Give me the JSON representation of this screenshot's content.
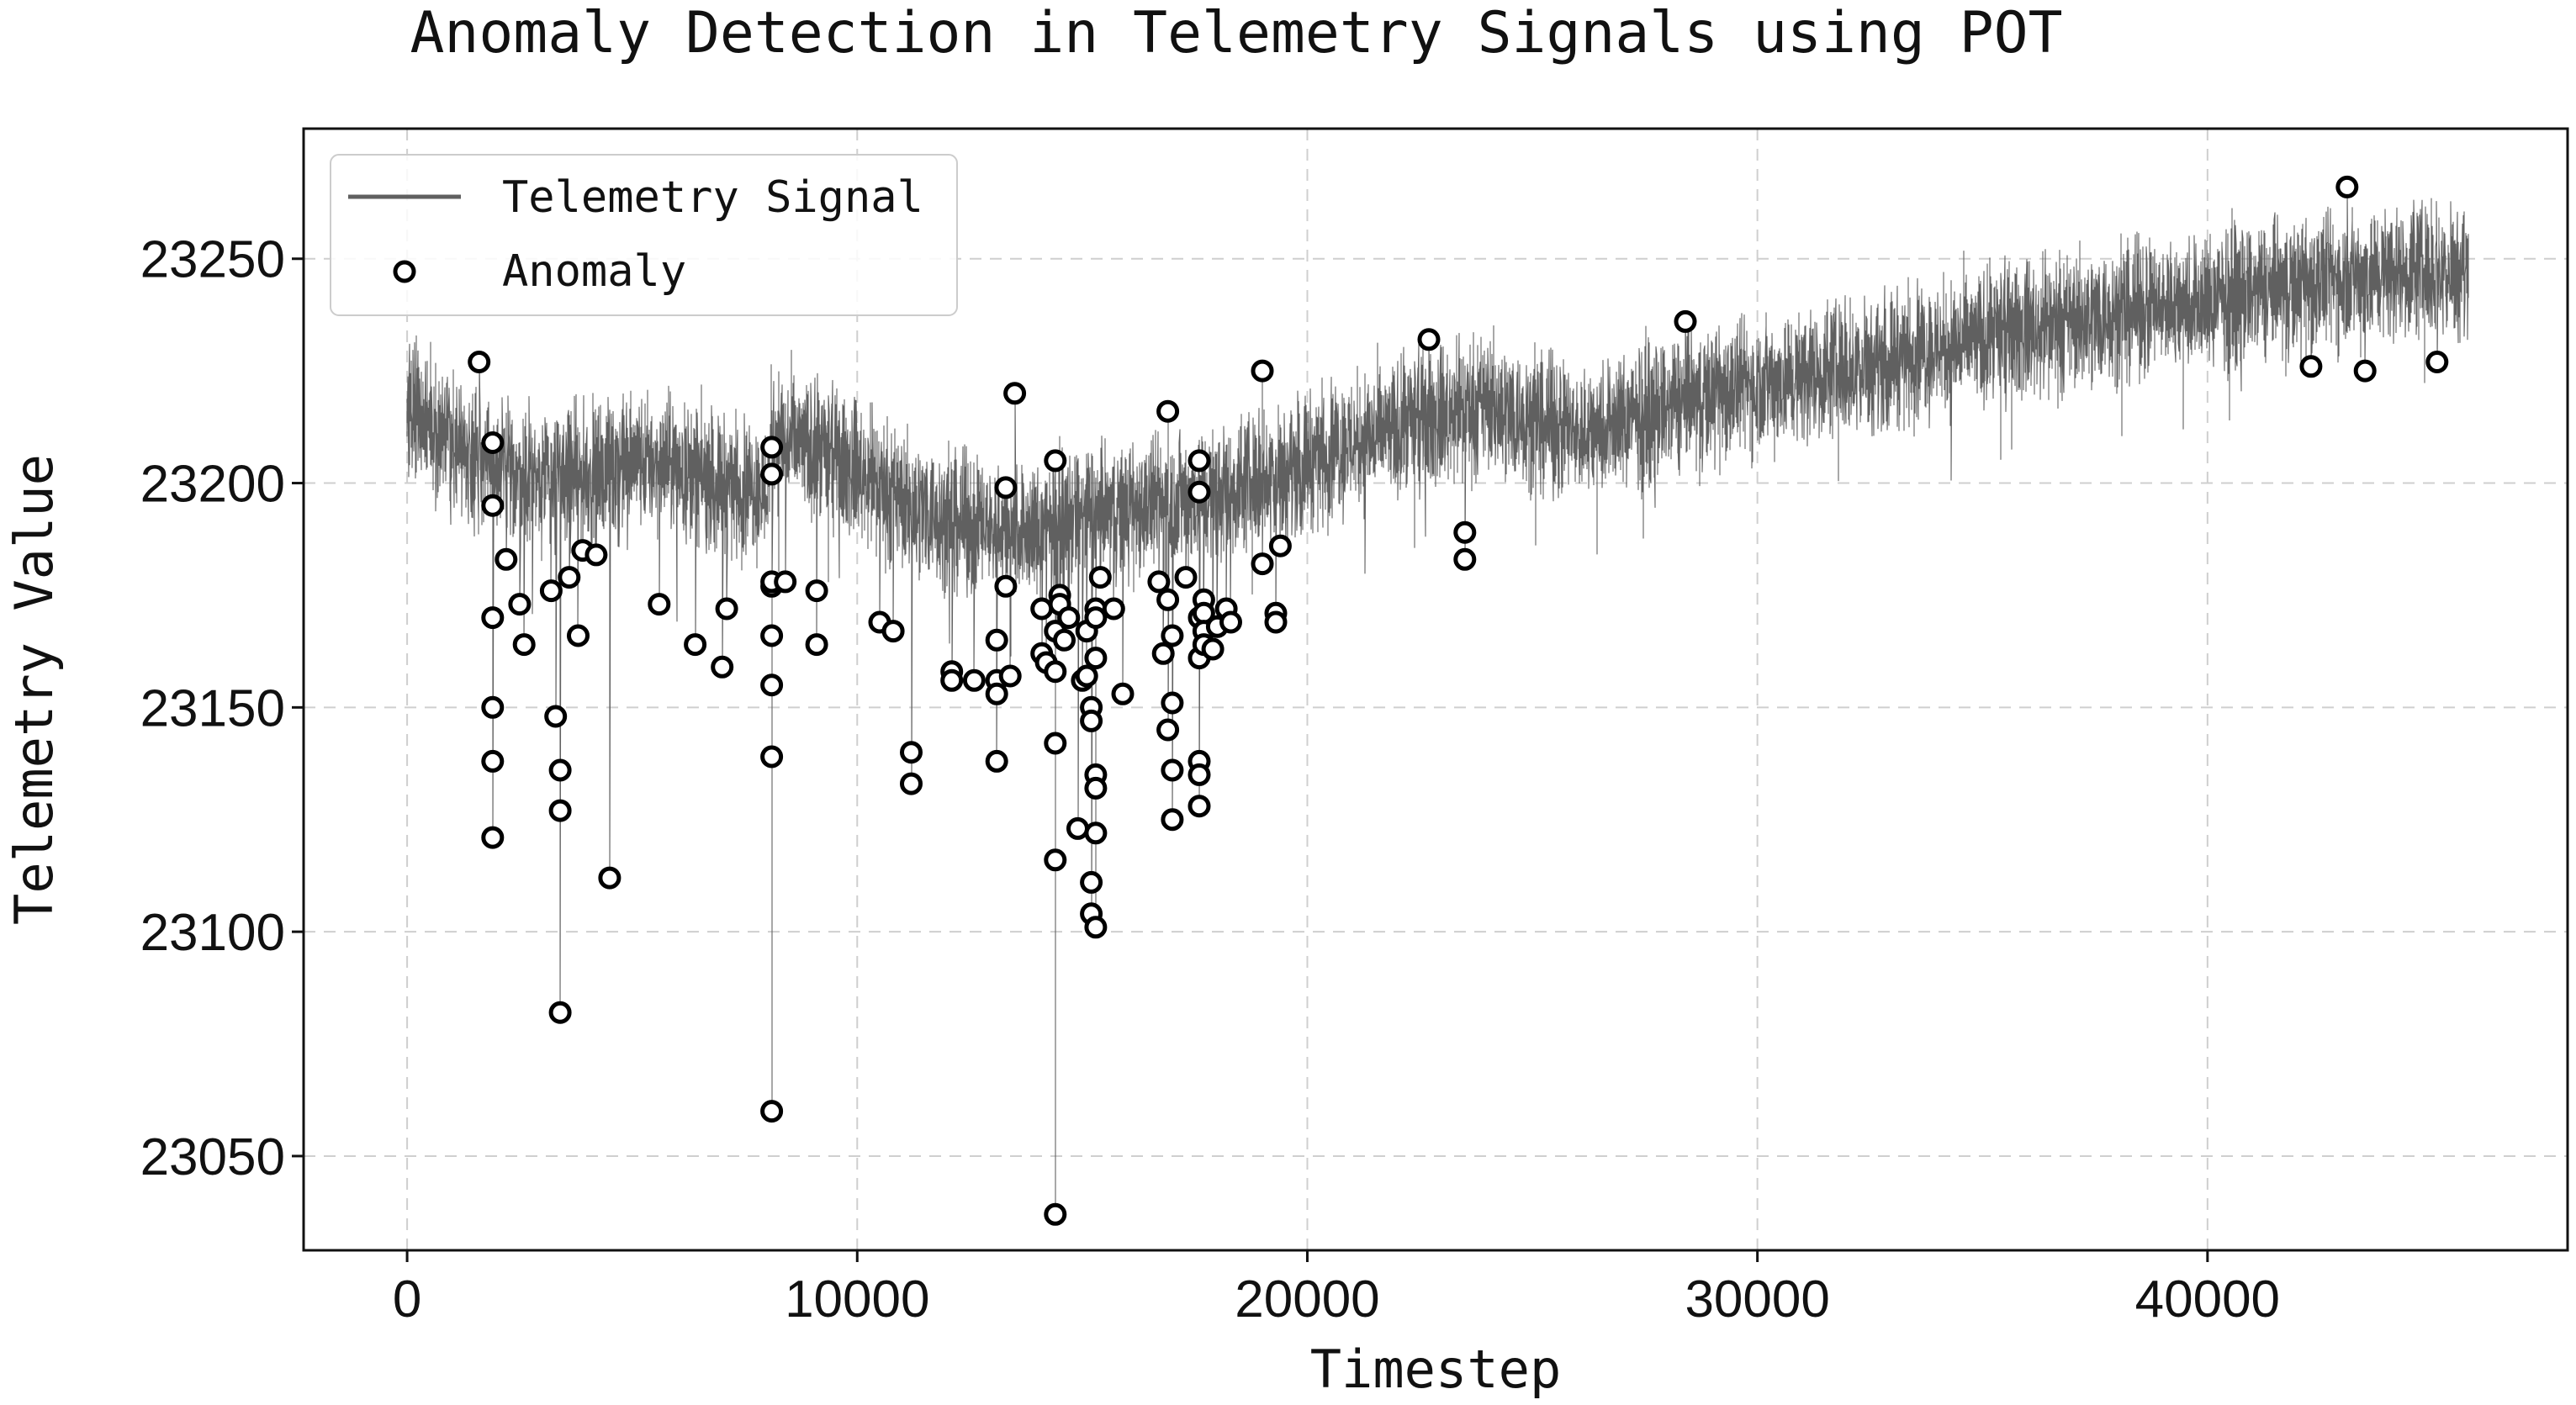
{
  "chart_data": {
    "type": "line",
    "title": "Anomaly Detection in Telemetry Signals using POT",
    "xlabel": "Timestep",
    "ylabel": "Telemetry Value",
    "xlim": [
      -2300,
      48000
    ],
    "ylim": [
      23029,
      23279
    ],
    "x_ticks": [
      0,
      10000,
      20000,
      30000,
      40000
    ],
    "x_tick_labels": [
      "0",
      "10000",
      "20000",
      "30000",
      "40000"
    ],
    "y_ticks": [
      23050,
      23100,
      23150,
      23200,
      23250
    ],
    "y_tick_labels": [
      "23050",
      "23100",
      "23150",
      "23200",
      "23250"
    ],
    "grid": true,
    "legend": {
      "position": "top-left",
      "entries": [
        "Telemetry Signal",
        "Anomaly"
      ]
    },
    "colors": {
      "signal": "#606060",
      "anomaly_edge": "#000000",
      "anomaly_fill": "#ffffff"
    },
    "series": [
      {
        "name": "Telemetry Signal",
        "type": "line",
        "length": 45800,
        "trend_x": [
          0,
          100,
          500,
          1000,
          2000,
          3000,
          4000,
          5000,
          6000,
          7000,
          8000,
          8100,
          9000,
          10000,
          11000,
          12000,
          13000,
          14000,
          15000,
          16000,
          17000,
          18000,
          19000,
          20000,
          21000,
          22000,
          23000,
          24000,
          25000,
          26000,
          27000,
          28000,
          29000,
          30000,
          32000,
          34000,
          36000,
          38000,
          40000,
          42000,
          44000,
          45800
        ],
        "trend_y": [
          23212,
          23218,
          23214,
          23209,
          23203,
          23201,
          23202,
          23205,
          23204,
          23200,
          23198,
          23211,
          23207,
          23203,
          23196,
          23192,
          23190,
          23189,
          23193,
          23194,
          23196,
          23198,
          23201,
          23205,
          23209,
          23212,
          23215,
          23218,
          23214,
          23211,
          23214,
          23217,
          23220,
          23222,
          23226,
          23230,
          23234,
          23238,
          23241,
          23244,
          23247,
          23248
        ],
        "noise_amplitude": 10
      },
      {
        "name": "Anomaly",
        "type": "scatter",
        "x": [
          1600,
          1900,
          1900,
          1900,
          1900,
          1900,
          1900,
          2200,
          2500,
          2600,
          3200,
          3300,
          3400,
          3400,
          3400,
          3600,
          3800,
          3900,
          4200,
          4500,
          5600,
          6400,
          7000,
          7100,
          8100,
          8100,
          8100,
          8100,
          8100,
          8100,
          8100,
          8100,
          8400,
          9100,
          9100,
          10500,
          10800,
          11200,
          11200,
          12100,
          12100,
          12600,
          13100,
          13100,
          13100,
          13100,
          13300,
          13300,
          13400,
          13500,
          14100,
          14100,
          14200,
          14400,
          14400,
          14400,
          14400,
          14400,
          14400,
          14500,
          14500,
          14600,
          14700,
          14900,
          15000,
          15100,
          15100,
          15200,
          15200,
          15200,
          15200,
          15300,
          15300,
          15300,
          15300,
          15300,
          15300,
          15300,
          15400,
          15700,
          15900,
          16700,
          16800,
          16900,
          16900,
          16900,
          17000,
          17000,
          17000,
          17000,
          17300,
          17600,
          17600,
          17600,
          17600,
          17600,
          17600,
          17600,
          17700,
          17700,
          17700,
          17700,
          17900,
          18000,
          18200,
          18300,
          19000,
          19000,
          19300,
          19300,
          19400,
          22700,
          23500,
          23500,
          28400,
          42300,
          43100,
          43500,
          45100
        ],
        "y": [
          23227,
          23209,
          23195,
          23170,
          23150,
          23138,
          23121,
          23183,
          23173,
          23164,
          23176,
          23148,
          23136,
          23127,
          23082,
          23179,
          23166,
          23185,
          23184,
          23112,
          23173,
          23164,
          23159,
          23172,
          23208,
          23202,
          23177,
          23166,
          23155,
          23139,
          23060,
          23178,
          23178,
          23176,
          23164,
          23169,
          23167,
          23140,
          23133,
          23158,
          23156,
          23156,
          23165,
          23156,
          23153,
          23138,
          23199,
          23177,
          23157,
          23220,
          23172,
          23162,
          23160,
          23205,
          23158,
          23142,
          23116,
          23037,
          23167,
          23175,
          23173,
          23165,
          23170,
          23123,
          23156,
          23157,
          23167,
          23150,
          23147,
          23111,
          23104,
          23161,
          23135,
          23132,
          23122,
          23101,
          23172,
          23170,
          23179,
          23172,
          23153,
          23178,
          23162,
          23216,
          23174,
          23145,
          23166,
          23151,
          23136,
          23125,
          23179,
          23205,
          23198,
          23170,
          23161,
          23138,
          23135,
          23128,
          23174,
          23171,
          23167,
          23164,
          23163,
          23168,
          23172,
          23169,
          23225,
          23182,
          23171,
          23169,
          23186,
          23232,
          23189,
          23183,
          23236,
          23226,
          23266,
          23225,
          23227
        ]
      }
    ]
  }
}
